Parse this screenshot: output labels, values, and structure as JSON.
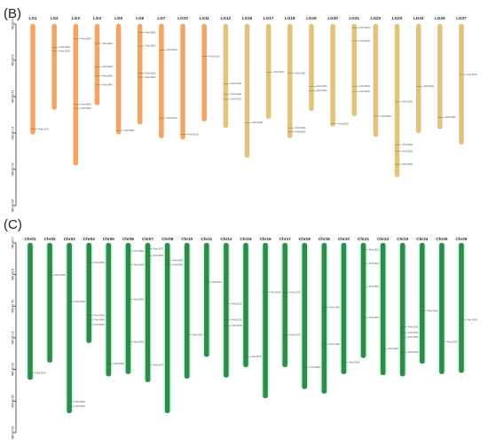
{
  "panels": [
    {
      "label": "(B)",
      "color_light": "#f4a55f",
      "color_dark": "#e3c37a",
      "axis_ticks": [
        "0.00",
        "6.00",
        "11.00",
        "17.00",
        "22.00",
        "28.00"
      ],
      "axis_max": 28,
      "chromosomes": [
        {
          "name": "LG1",
          "length": 17.0,
          "tone": "light",
          "markers": [
            {
              "pos": 16.2,
              "label": "Potri.001G"
            }
          ]
        },
        {
          "name": "LG2",
          "length": 13.2,
          "tone": "light",
          "markers": [
            {
              "pos": 3.6,
              "label": "Potri.002G"
            },
            {
              "pos": 4.2,
              "label": "Potri.002G"
            }
          ]
        },
        {
          "name": "LG3",
          "length": 21.8,
          "tone": "light",
          "markers": [
            {
              "pos": 2.3,
              "label": "Potri.003G"
            },
            {
              "pos": 12.4,
              "label": "Potri.003G"
            },
            {
              "pos": 13.0,
              "label": "Potri.003G"
            }
          ]
        },
        {
          "name": "LG4",
          "length": 12.5,
          "tone": "light",
          "markers": [
            {
              "pos": 3.0,
              "label": "Potri.004G"
            },
            {
              "pos": 6.6,
              "label": "Potri.004G"
            },
            {
              "pos": 8.0,
              "label": "Potri.004G"
            },
            {
              "pos": 9.4,
              "label": "Potri.004G"
            }
          ]
        },
        {
          "name": "LG5",
          "length": 17.0,
          "tone": "light",
          "markers": [
            {
              "pos": 16.4,
              "label": "Potri.005G"
            }
          ]
        },
        {
          "name": "LG6",
          "length": 15.5,
          "tone": "light",
          "markers": [
            {
              "pos": 1.3,
              "label": "Potri.006G"
            },
            {
              "pos": 3.4,
              "label": "Potri.006G"
            },
            {
              "pos": 7.6,
              "label": "Potri.006G"
            },
            {
              "pos": 8.2,
              "label": "Potri.006G"
            }
          ]
        },
        {
          "name": "LG7",
          "length": 17.6,
          "tone": "light",
          "markers": [
            {
              "pos": 4.0,
              "label": "Potri.007G"
            },
            {
              "pos": 14.5,
              "label": "Potri.007G"
            }
          ]
        },
        {
          "name": "LG10",
          "length": 17.8,
          "tone": "light",
          "markers": [
            {
              "pos": 17.0,
              "label": "Potri.010G"
            }
          ]
        },
        {
          "name": "LG11",
          "length": 15.0,
          "tone": "light",
          "markers": [
            {
              "pos": 5.0,
              "label": "Potri.011G"
            }
          ]
        },
        {
          "name": "LG12",
          "length": 16.0,
          "tone": "dark",
          "markers": [
            {
              "pos": 9.2,
              "label": "Potri.012G"
            },
            {
              "pos": 10.8,
              "label": "Potri.012G"
            },
            {
              "pos": 11.6,
              "label": "Potri.012G"
            }
          ]
        },
        {
          "name": "LG16",
          "length": 20.6,
          "tone": "dark",
          "markers": [
            {
              "pos": 15.2,
              "label": "Potri.016G"
            }
          ]
        },
        {
          "name": "LG17",
          "length": 14.6,
          "tone": "dark",
          "markers": [
            {
              "pos": 7.4,
              "label": "Potri.017G"
            }
          ]
        },
        {
          "name": "LG18",
          "length": 17.6,
          "tone": "dark",
          "markers": [
            {
              "pos": 7.6,
              "label": "Potri.018G"
            },
            {
              "pos": 16.0,
              "label": "Potri.018G"
            },
            {
              "pos": 16.6,
              "label": "Potri.018G"
            }
          ]
        },
        {
          "name": "LG19",
          "length": 13.4,
          "tone": "dark",
          "markers": [
            {
              "pos": 9.6,
              "label": "Potri.019G"
            },
            {
              "pos": 10.3,
              "label": "Potri.019G"
            }
          ]
        },
        {
          "name": "LG20",
          "length": 15.8,
          "tone": "dark",
          "markers": [
            {
              "pos": 15.4,
              "label": "Potri.020G"
            }
          ]
        },
        {
          "name": "LG21",
          "length": 14.2,
          "tone": "dark",
          "markers": [
            {
              "pos": 0.6,
              "label": "Potri.021G"
            },
            {
              "pos": 2.6,
              "label": "Potri.021G"
            },
            {
              "pos": 9.6,
              "label": "Potri.021G"
            },
            {
              "pos": 10.4,
              "label": "Potri.021G"
            }
          ]
        },
        {
          "name": "LG22",
          "length": 17.4,
          "tone": "dark",
          "markers": [
            {
              "pos": 14.2,
              "label": "Potri.022G"
            }
          ]
        },
        {
          "name": "LG23",
          "length": 23.6,
          "tone": "dark",
          "markers": [
            {
              "pos": 12.0,
              "label": "Potri.023G"
            },
            {
              "pos": 18.6,
              "label": "Potri.023G"
            },
            {
              "pos": 19.6,
              "label": "Potri.023G"
            },
            {
              "pos": 21.6,
              "label": "Potri.023G"
            }
          ]
        },
        {
          "name": "LG24",
          "length": 16.8,
          "tone": "dark",
          "markers": [
            {
              "pos": 9.6,
              "label": "Potri.024G"
            }
          ]
        },
        {
          "name": "LG25",
          "length": 16.2,
          "tone": "dark",
          "markers": [
            {
              "pos": 14.4,
              "label": "Potri.025G"
            }
          ]
        },
        {
          "name": "LG27",
          "length": 18.6,
          "tone": "dark",
          "markers": [
            {
              "pos": 7.8,
              "label": "Potri.027G"
            }
          ]
        }
      ]
    },
    {
      "label": "(C)",
      "color_light": "#c8f5ec",
      "color_dark": "#2e8c45",
      "axis_ticks": [
        "0.00",
        "6.00",
        "11.00",
        "17.00",
        "22.00",
        "28.00",
        "33.00"
      ],
      "axis_max": 33,
      "chromosomes": [
        {
          "name": "Chr01",
          "length": 23.8,
          "markers": [
            {
              "pos": 22.6,
              "label": "Potri.001G"
            }
          ]
        },
        {
          "name": "Chr02",
          "length": 20.8,
          "markers": [
            {
              "pos": 5.6,
              "label": "Potri.002G"
            }
          ]
        },
        {
          "name": "Chr03",
          "length": 29.6,
          "markers": [
            {
              "pos": 10.2,
              "label": "Potri.003G"
            },
            {
              "pos": 27.6,
              "label": "Potri.003G"
            },
            {
              "pos": 28.4,
              "label": "Potri.003G"
            }
          ]
        },
        {
          "name": "Chr04",
          "length": 17.4,
          "markers": [
            {
              "pos": 3.4,
              "label": "Potri.004G"
            },
            {
              "pos": 12.6,
              "label": "Potri.004G"
            },
            {
              "pos": 13.4,
              "label": "Potri.004G"
            },
            {
              "pos": 14.2,
              "label": "Potri.004G"
            }
          ]
        },
        {
          "name": "Chr05",
          "length": 23.2,
          "markers": [
            {
              "pos": 21.0,
              "label": "Potri.005G"
            }
          ]
        },
        {
          "name": "Chr06",
          "length": 22.8,
          "markers": [
            {
              "pos": 1.4,
              "label": "Potri.006G"
            },
            {
              "pos": 3.8,
              "label": "Potri.006G"
            },
            {
              "pos": 9.8,
              "label": "Potri.006G"
            },
            {
              "pos": 17.2,
              "label": "Potri.006G"
            }
          ]
        },
        {
          "name": "Chr07",
          "length": 24.2,
          "markers": [
            {
              "pos": 1.0,
              "label": "Potri.007G"
            },
            {
              "pos": 2.2,
              "label": "Potri.007G"
            },
            {
              "pos": 21.2,
              "label": "Potri.007G"
            }
          ]
        },
        {
          "name": "Chr08",
          "length": 29.6,
          "markers": [
            {
              "pos": 3.0,
              "label": "Potri.008G"
            },
            {
              "pos": 3.8,
              "label": "Potri.008G"
            }
          ]
        },
        {
          "name": "Chr10",
          "length": 23.6,
          "markers": [
            {
              "pos": 16.0,
              "label": "Potri.010G"
            }
          ]
        },
        {
          "name": "Chr11",
          "length": 19.8,
          "markers": [
            {
              "pos": 6.8,
              "label": "Potri.011G"
            }
          ]
        },
        {
          "name": "Chr12",
          "length": 23.4,
          "markers": [
            {
              "pos": 10.6,
              "label": "Potri.012G"
            },
            {
              "pos": 13.4,
              "label": "Potri.012G"
            },
            {
              "pos": 14.4,
              "label": "Potri.012G"
            }
          ]
        },
        {
          "name": "Chr16",
          "length": 21.6,
          "markers": [
            {
              "pos": 19.8,
              "label": "Potri.016G"
            }
          ]
        },
        {
          "name": "Chr15",
          "length": 27.0,
          "markers": [
            {
              "pos": 8.6,
              "label": "Potri.015G"
            }
          ]
        },
        {
          "name": "Chr17",
          "length": 21.6,
          "markers": [
            {
              "pos": 8.6,
              "label": "Potri.017G"
            },
            {
              "pos": 16.0,
              "label": "Potri.017G"
            }
          ]
        },
        {
          "name": "Chr18",
          "length": 25.4,
          "markers": [
            {
              "pos": 21.6,
              "label": "Potri.018G"
            }
          ]
        },
        {
          "name": "Chr19",
          "length": 26.2,
          "markers": [
            {
              "pos": 11.2,
              "label": "Potri.019G"
            },
            {
              "pos": 17.6,
              "label": "Potri.019G"
            }
          ]
        },
        {
          "name": "Chr20",
          "length": 22.8,
          "markers": [
            {
              "pos": 20.8,
              "label": "Potri.020G"
            }
          ]
        },
        {
          "name": "Chr21",
          "length": 20.0,
          "markers": [
            {
              "pos": 1.2,
              "label": "Potri.021G"
            },
            {
              "pos": 3.6,
              "label": "Potri.021G"
            },
            {
              "pos": 7.6,
              "label": "Potri.021G"
            },
            {
              "pos": 13.0,
              "label": "Potri.021G"
            }
          ]
        },
        {
          "name": "Chr22",
          "length": 23.0,
          "markers": [
            {
              "pos": 18.4,
              "label": "Potri.022G"
            }
          ]
        },
        {
          "name": "Chr23",
          "length": 23.2,
          "markers": [
            {
              "pos": 14.6,
              "label": "Potri.023G"
            },
            {
              "pos": 15.6,
              "label": "Potri.023G"
            },
            {
              "pos": 16.4,
              "label": "Potri.023G"
            },
            {
              "pos": 19.0,
              "label": "Potri.023G"
            }
          ]
        },
        {
          "name": "Chr24",
          "length": 21.0,
          "markers": [
            {
              "pos": 11.8,
              "label": "Potri.024G"
            }
          ]
        },
        {
          "name": "Chr25",
          "length": 22.8,
          "markers": [
            {
              "pos": 17.2,
              "label": "Potri.025G"
            }
          ]
        },
        {
          "name": "Chr26",
          "length": 22.6,
          "markers": [
            {
              "pos": 13.4,
              "label": "Potri.026G"
            }
          ]
        }
      ]
    }
  ]
}
